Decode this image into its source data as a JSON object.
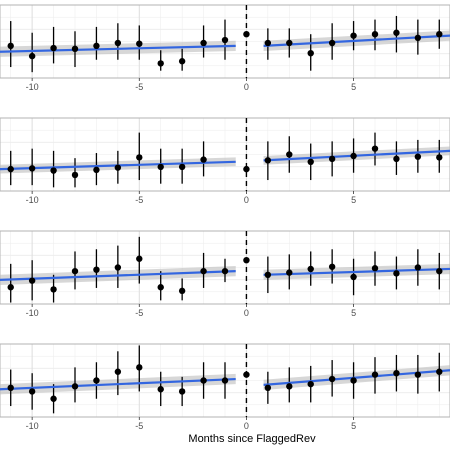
{
  "chart_data": {
    "type": "scatter",
    "panels": 4,
    "xlabel": "Months since FlaggedRev",
    "xlim": [
      -11.5,
      9.5
    ],
    "xticks": [
      -10,
      -5,
      0,
      5
    ],
    "ylim": [
      0,
      1
    ],
    "cutoff_x": 0,
    "grid": true,
    "colors": {
      "points": "#000000",
      "fit_line": "#3366e0",
      "ribbon": "#bdbdbd",
      "grid": "#ebebeb",
      "cutoff": "#000000"
    },
    "facets": [
      {
        "points": [
          {
            "x": -11,
            "y": 0.44,
            "lo": 0.15,
            "hi": 0.78
          },
          {
            "x": -10,
            "y": 0.3,
            "lo": 0.08,
            "hi": 0.62
          },
          {
            "x": -9,
            "y": 0.41,
            "lo": 0.2,
            "hi": 0.7
          },
          {
            "x": -8,
            "y": 0.4,
            "lo": 0.15,
            "hi": 0.64
          },
          {
            "x": -7,
            "y": 0.44,
            "lo": 0.25,
            "hi": 0.7
          },
          {
            "x": -6,
            "y": 0.48,
            "lo": 0.25,
            "hi": 0.75
          },
          {
            "x": -5,
            "y": 0.47,
            "lo": 0.25,
            "hi": 0.72
          },
          {
            "x": -4,
            "y": 0.2,
            "lo": 0.1,
            "hi": 0.38
          },
          {
            "x": -3,
            "y": 0.23,
            "lo": 0.1,
            "hi": 0.4
          },
          {
            "x": -2,
            "y": 0.48,
            "lo": 0.28,
            "hi": 0.72
          },
          {
            "x": -1,
            "y": 0.52,
            "lo": 0.25,
            "hi": 0.8
          },
          {
            "x": 0,
            "y": 0.6,
            "lo": 0.6,
            "hi": 0.6
          },
          {
            "x": 1,
            "y": 0.48,
            "lo": 0.25,
            "hi": 0.68
          },
          {
            "x": 2,
            "y": 0.48,
            "lo": 0.28,
            "hi": 0.68
          },
          {
            "x": 3,
            "y": 0.34,
            "lo": 0.1,
            "hi": 0.6
          },
          {
            "x": 4,
            "y": 0.48,
            "lo": 0.25,
            "hi": 0.75
          },
          {
            "x": 5,
            "y": 0.58,
            "lo": 0.38,
            "hi": 0.78
          },
          {
            "x": 6,
            "y": 0.6,
            "lo": 0.38,
            "hi": 0.8
          },
          {
            "x": 7,
            "y": 0.62,
            "lo": 0.35,
            "hi": 0.85
          },
          {
            "x": 8,
            "y": 0.55,
            "lo": 0.32,
            "hi": 0.8
          },
          {
            "x": 9,
            "y": 0.6,
            "lo": 0.4,
            "hi": 0.8
          }
        ],
        "fit_pre": {
          "x": [
            -11.5,
            -0.5
          ],
          "y": [
            0.36,
            0.44
          ],
          "band": 0.07
        },
        "fit_post": {
          "x": [
            0.8,
            9.5
          ],
          "y": [
            0.44,
            0.58
          ],
          "band": 0.07
        }
      },
      {
        "points": [
          {
            "x": -11,
            "y": 0.3,
            "lo": 0.08,
            "hi": 0.55
          },
          {
            "x": -10,
            "y": 0.31,
            "lo": 0.08,
            "hi": 0.58
          },
          {
            "x": -9,
            "y": 0.28,
            "lo": 0.05,
            "hi": 0.55
          },
          {
            "x": -8,
            "y": 0.22,
            "lo": 0.05,
            "hi": 0.45
          },
          {
            "x": -7,
            "y": 0.29,
            "lo": 0.08,
            "hi": 0.52
          },
          {
            "x": -6,
            "y": 0.32,
            "lo": 0.1,
            "hi": 0.55
          },
          {
            "x": -5,
            "y": 0.46,
            "lo": 0.15,
            "hi": 0.8
          },
          {
            "x": -4,
            "y": 0.33,
            "lo": 0.1,
            "hi": 0.58
          },
          {
            "x": -3,
            "y": 0.33,
            "lo": 0.1,
            "hi": 0.58
          },
          {
            "x": -2,
            "y": 0.43,
            "lo": 0.2,
            "hi": 0.68
          },
          {
            "x": 0,
            "y": 0.3,
            "lo": 0.3,
            "hi": 0.3
          },
          {
            "x": 1,
            "y": 0.42,
            "lo": 0.15,
            "hi": 0.68
          },
          {
            "x": 2,
            "y": 0.5,
            "lo": 0.25,
            "hi": 0.75
          },
          {
            "x": 3,
            "y": 0.4,
            "lo": 0.15,
            "hi": 0.65
          },
          {
            "x": 4,
            "y": 0.44,
            "lo": 0.2,
            "hi": 0.68
          },
          {
            "x": 5,
            "y": 0.48,
            "lo": 0.25,
            "hi": 0.72
          },
          {
            "x": 6,
            "y": 0.58,
            "lo": 0.35,
            "hi": 0.8
          },
          {
            "x": 7,
            "y": 0.44,
            "lo": 0.22,
            "hi": 0.68
          },
          {
            "x": 8,
            "y": 0.47,
            "lo": 0.25,
            "hi": 0.7
          },
          {
            "x": 9,
            "y": 0.46,
            "lo": 0.25,
            "hi": 0.7
          }
        ],
        "fit_pre": {
          "x": [
            -11.5,
            -0.5
          ],
          "y": [
            0.3,
            0.4
          ],
          "band": 0.06
        },
        "fit_post": {
          "x": [
            0.8,
            9.5
          ],
          "y": [
            0.42,
            0.55
          ],
          "band": 0.06
        }
      },
      {
        "points": [
          {
            "x": -11,
            "y": 0.23,
            "lo": 0.02,
            "hi": 0.55
          },
          {
            "x": -10,
            "y": 0.32,
            "lo": 0.05,
            "hi": 0.6
          },
          {
            "x": -9,
            "y": 0.2,
            "lo": 0.02,
            "hi": 0.4
          },
          {
            "x": -8,
            "y": 0.45,
            "lo": 0.2,
            "hi": 0.72
          },
          {
            "x": -7,
            "y": 0.47,
            "lo": 0.22,
            "hi": 0.75
          },
          {
            "x": -6,
            "y": 0.5,
            "lo": 0.22,
            "hi": 0.8
          },
          {
            "x": -5,
            "y": 0.62,
            "lo": 0.28,
            "hi": 0.92
          },
          {
            "x": -4,
            "y": 0.23,
            "lo": 0.05,
            "hi": 0.45
          },
          {
            "x": -3,
            "y": 0.18,
            "lo": 0.05,
            "hi": 0.35
          },
          {
            "x": -2,
            "y": 0.45,
            "lo": 0.22,
            "hi": 0.7
          },
          {
            "x": -1,
            "y": 0.45,
            "lo": 0.3,
            "hi": 0.62
          },
          {
            "x": 0,
            "y": 0.6,
            "lo": 0.6,
            "hi": 0.6
          },
          {
            "x": 1,
            "y": 0.4,
            "lo": 0.15,
            "hi": 0.65
          },
          {
            "x": 2,
            "y": 0.43,
            "lo": 0.2,
            "hi": 0.68
          },
          {
            "x": 3,
            "y": 0.48,
            "lo": 0.25,
            "hi": 0.72
          },
          {
            "x": 4,
            "y": 0.51,
            "lo": 0.28,
            "hi": 0.75
          },
          {
            "x": 5,
            "y": 0.37,
            "lo": 0.12,
            "hi": 0.62
          },
          {
            "x": 6,
            "y": 0.49,
            "lo": 0.25,
            "hi": 0.72
          },
          {
            "x": 7,
            "y": 0.42,
            "lo": 0.2,
            "hi": 0.65
          },
          {
            "x": 8,
            "y": 0.5,
            "lo": 0.25,
            "hi": 0.75
          },
          {
            "x": 9,
            "y": 0.45,
            "lo": 0.2,
            "hi": 0.7
          }
        ],
        "fit_pre": {
          "x": [
            -11.5,
            -0.5
          ],
          "y": [
            0.33,
            0.45
          ],
          "band": 0.07
        },
        "fit_post": {
          "x": [
            0.8,
            9.5
          ],
          "y": [
            0.4,
            0.48
          ],
          "band": 0.07
        }
      },
      {
        "points": [
          {
            "x": -11,
            "y": 0.4,
            "lo": 0.15,
            "hi": 0.65
          },
          {
            "x": -10,
            "y": 0.35,
            "lo": 0.1,
            "hi": 0.6
          },
          {
            "x": -9,
            "y": 0.25,
            "lo": 0.05,
            "hi": 0.45
          },
          {
            "x": -8,
            "y": 0.42,
            "lo": 0.2,
            "hi": 0.68
          },
          {
            "x": -7,
            "y": 0.5,
            "lo": 0.25,
            "hi": 0.75
          },
          {
            "x": -6,
            "y": 0.62,
            "lo": 0.3,
            "hi": 0.9
          },
          {
            "x": -5,
            "y": 0.68,
            "lo": 0.35,
            "hi": 0.98
          },
          {
            "x": -4,
            "y": 0.38,
            "lo": 0.15,
            "hi": 0.62
          },
          {
            "x": -3,
            "y": 0.35,
            "lo": 0.15,
            "hi": 0.55
          },
          {
            "x": -2,
            "y": 0.5,
            "lo": 0.25,
            "hi": 0.75
          },
          {
            "x": -1,
            "y": 0.5,
            "lo": 0.25,
            "hi": 0.75
          },
          {
            "x": 0,
            "y": 0.58,
            "lo": 0.58,
            "hi": 0.58
          },
          {
            "x": 1,
            "y": 0.4,
            "lo": 0.18,
            "hi": 0.62
          },
          {
            "x": 2,
            "y": 0.42,
            "lo": 0.2,
            "hi": 0.68
          },
          {
            "x": 3,
            "y": 0.45,
            "lo": 0.2,
            "hi": 0.7
          },
          {
            "x": 4,
            "y": 0.52,
            "lo": 0.28,
            "hi": 0.78
          },
          {
            "x": 5,
            "y": 0.5,
            "lo": 0.25,
            "hi": 0.75
          },
          {
            "x": 6,
            "y": 0.58,
            "lo": 0.32,
            "hi": 0.82
          },
          {
            "x": 7,
            "y": 0.6,
            "lo": 0.35,
            "hi": 0.85
          },
          {
            "x": 8,
            "y": 0.58,
            "lo": 0.32,
            "hi": 0.85
          },
          {
            "x": 9,
            "y": 0.62,
            "lo": 0.35,
            "hi": 0.88
          }
        ],
        "fit_pre": {
          "x": [
            -11.5,
            -0.5
          ],
          "y": [
            0.38,
            0.52
          ],
          "band": 0.07
        },
        "fit_post": {
          "x": [
            0.8,
            9.5
          ],
          "y": [
            0.44,
            0.64
          ],
          "band": 0.07
        }
      }
    ]
  }
}
